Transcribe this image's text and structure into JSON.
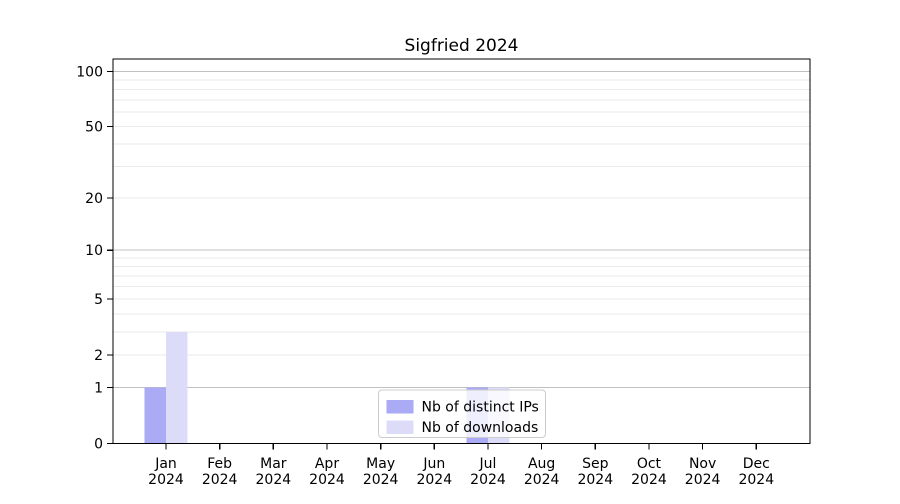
{
  "chart_data": {
    "type": "bar",
    "title": "Sigfried 2024",
    "categories": [
      "Jan",
      "Feb",
      "Mar",
      "Apr",
      "May",
      "Jun",
      "Jul",
      "Aug",
      "Sep",
      "Oct",
      "Nov",
      "Dec"
    ],
    "category_year": "2024",
    "series": [
      {
        "name": "Nb of distinct IPs",
        "color": "#aaaaf5",
        "values": [
          1,
          0,
          0,
          0,
          0,
          0,
          1,
          0,
          0,
          0,
          0,
          0
        ]
      },
      {
        "name": "Nb of downloads",
        "color": "#dcdcf8",
        "values": [
          3,
          0,
          0,
          0,
          0,
          0,
          1,
          0,
          0,
          0,
          0,
          0
        ]
      }
    ],
    "y_axis": {
      "scale": "log1p",
      "ticks": [
        0,
        1,
        2,
        5,
        10,
        20,
        50,
        100
      ],
      "minor_gridlines": [
        3,
        4,
        6,
        7,
        8,
        9,
        30,
        40,
        60,
        70,
        80,
        90
      ],
      "emphasized_ticks": [
        1,
        10,
        100
      ],
      "ylim": [
        0,
        116
      ]
    },
    "legend": {
      "position": "lower-center",
      "border_color": "#cccccc",
      "background": "rgba(255,255,255,0.8)"
    },
    "grid": true,
    "colors": {
      "major_gridline": "#c0c0c0",
      "minor_gridline": "#eaeaea",
      "axis": "#000000",
      "plot_background": "#ffffff"
    }
  }
}
